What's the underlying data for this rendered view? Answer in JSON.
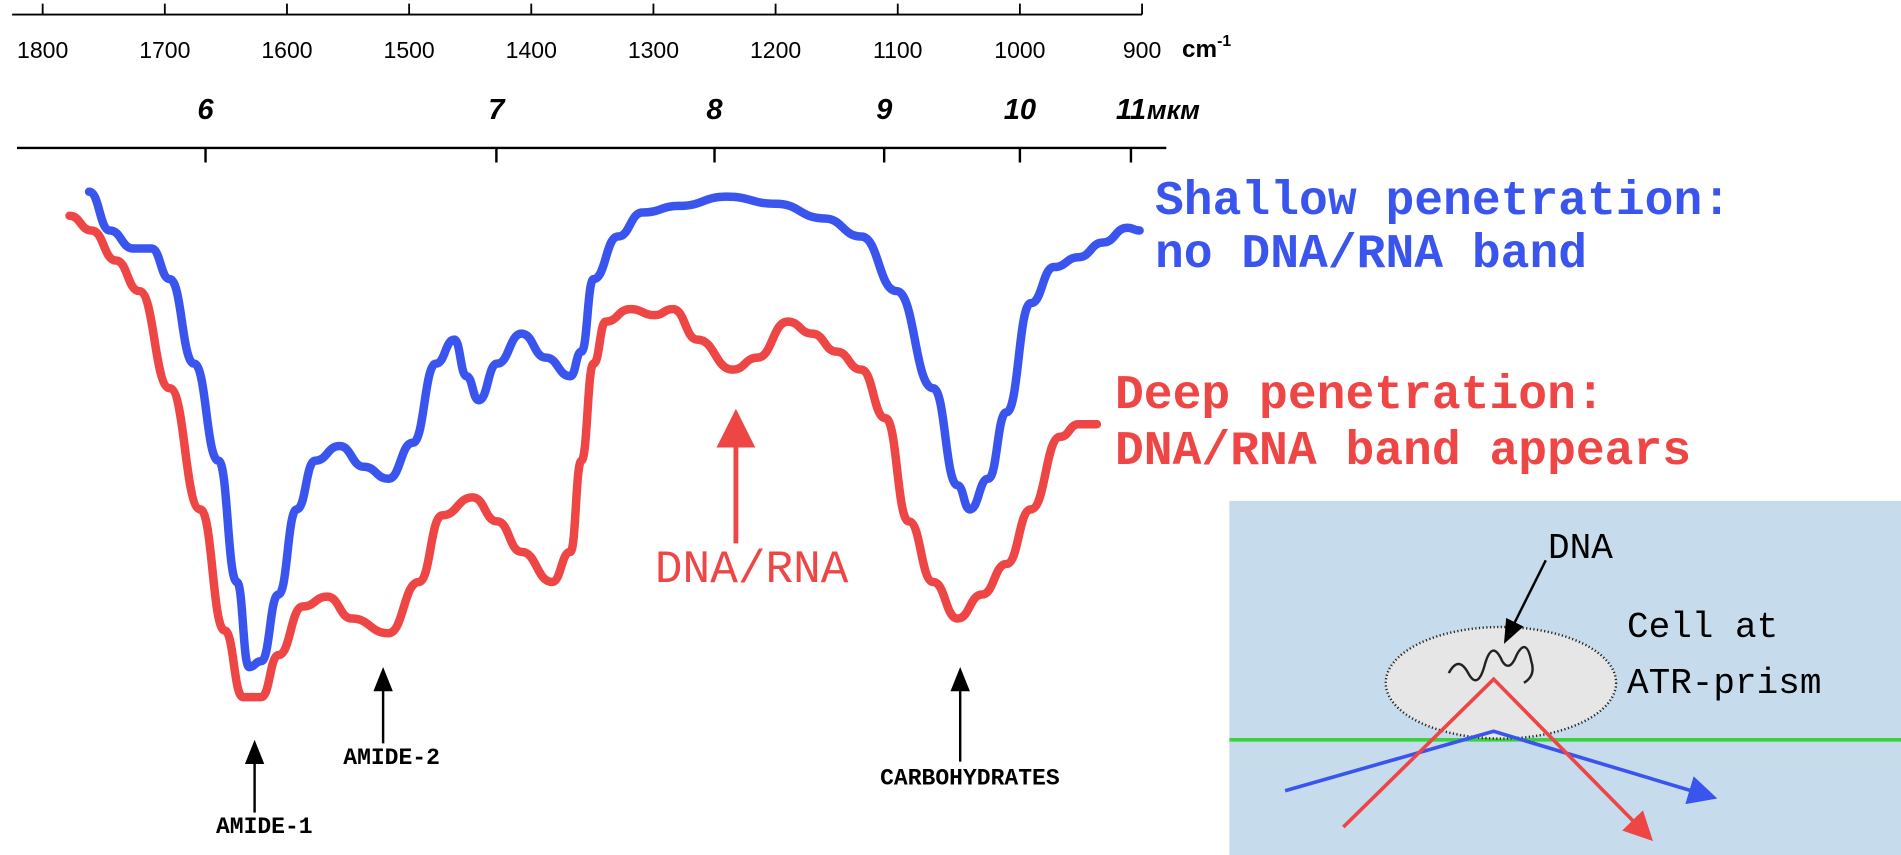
{
  "chart_data": {
    "type": "line",
    "x_unit": {
      "base": "cm",
      "sup": "-1"
    },
    "xlim": [
      1825,
      900
    ],
    "xticks": [
      1800,
      1700,
      1600,
      1500,
      1400,
      1300,
      1200,
      1100,
      1000,
      900
    ],
    "x2ticks": [
      6,
      7,
      8,
      9,
      10,
      11
    ],
    "x2_unit": "мкм",
    "ylim": [
      0,
      100
    ],
    "series": [
      {
        "name": "Shallow penetration: no DNA/RNA band",
        "color": "#3a55ee",
        "x": [
          1762,
          1745,
          1726,
          1711,
          1696,
          1676,
          1656,
          1641,
          1631,
          1621,
          1607,
          1592,
          1577,
          1557,
          1537,
          1517,
          1497,
          1478,
          1463,
          1453,
          1443,
          1428,
          1408,
          1388,
          1368,
          1359,
          1349,
          1329,
          1309,
          1279,
          1240,
          1200,
          1160,
          1130,
          1101,
          1071,
          1051,
          1041,
          1026,
          1011,
          991,
          972,
          952,
          932,
          912,
          902
        ],
        "values": [
          98.2,
          91.1,
          87.8,
          87.8,
          82.2,
          66.7,
          48.9,
          26.7,
          11.1,
          12.2,
          24.4,
          40,
          48.9,
          51.6,
          47.8,
          45.6,
          52.2,
          66.7,
          71.1,
          64.4,
          60,
          66.7,
          72.2,
          67.8,
          64.4,
          68.9,
          82.2,
          90,
          94.4,
          95.6,
          97.3,
          96,
          93.3,
          90,
          80,
          62.2,
          44.4,
          40,
          45.6,
          57.8,
          77.8,
          84.4,
          86.2,
          88.9,
          91.6,
          91.1
        ]
      },
      {
        "name": "Deep penetration: DNA/RNA band appears",
        "color": "#ee4545",
        "x": [
          1778,
          1760,
          1740,
          1721,
          1696,
          1671,
          1651,
          1636,
          1621,
          1607,
          1587,
          1567,
          1547,
          1517,
          1492,
          1473,
          1448,
          1428,
          1408,
          1383,
          1368,
          1359,
          1349,
          1339,
          1319,
          1299,
          1284,
          1264,
          1235,
          1215,
          1190,
          1170,
          1150,
          1130,
          1110,
          1091,
          1071,
          1051,
          1031,
          1011,
          991,
          967,
          952,
          937
        ],
        "values": [
          93.8,
          91.1,
          85.6,
          80,
          62.2,
          40,
          17.8,
          5.6,
          5.6,
          13.3,
          22.2,
          24,
          20,
          17.3,
          26.7,
          38.9,
          42.2,
          37.8,
          32.2,
          26.7,
          32.2,
          48.9,
          66.7,
          74.4,
          76.7,
          75.6,
          76.7,
          71.1,
          65.6,
          67.8,
          74.4,
          72.2,
          68.9,
          65.6,
          56.7,
          37.8,
          26.7,
          20,
          24.4,
          30,
          40,
          53.3,
          55.6,
          55.6
        ]
      }
    ],
    "annotations": [
      "AMIDE-1",
      "AMIDE-2",
      "CARBOHYDRATES",
      "DNA/RNA"
    ]
  },
  "inset": {
    "dna_label": "DNA",
    "cell_label": "Cell at ATR-prism"
  }
}
